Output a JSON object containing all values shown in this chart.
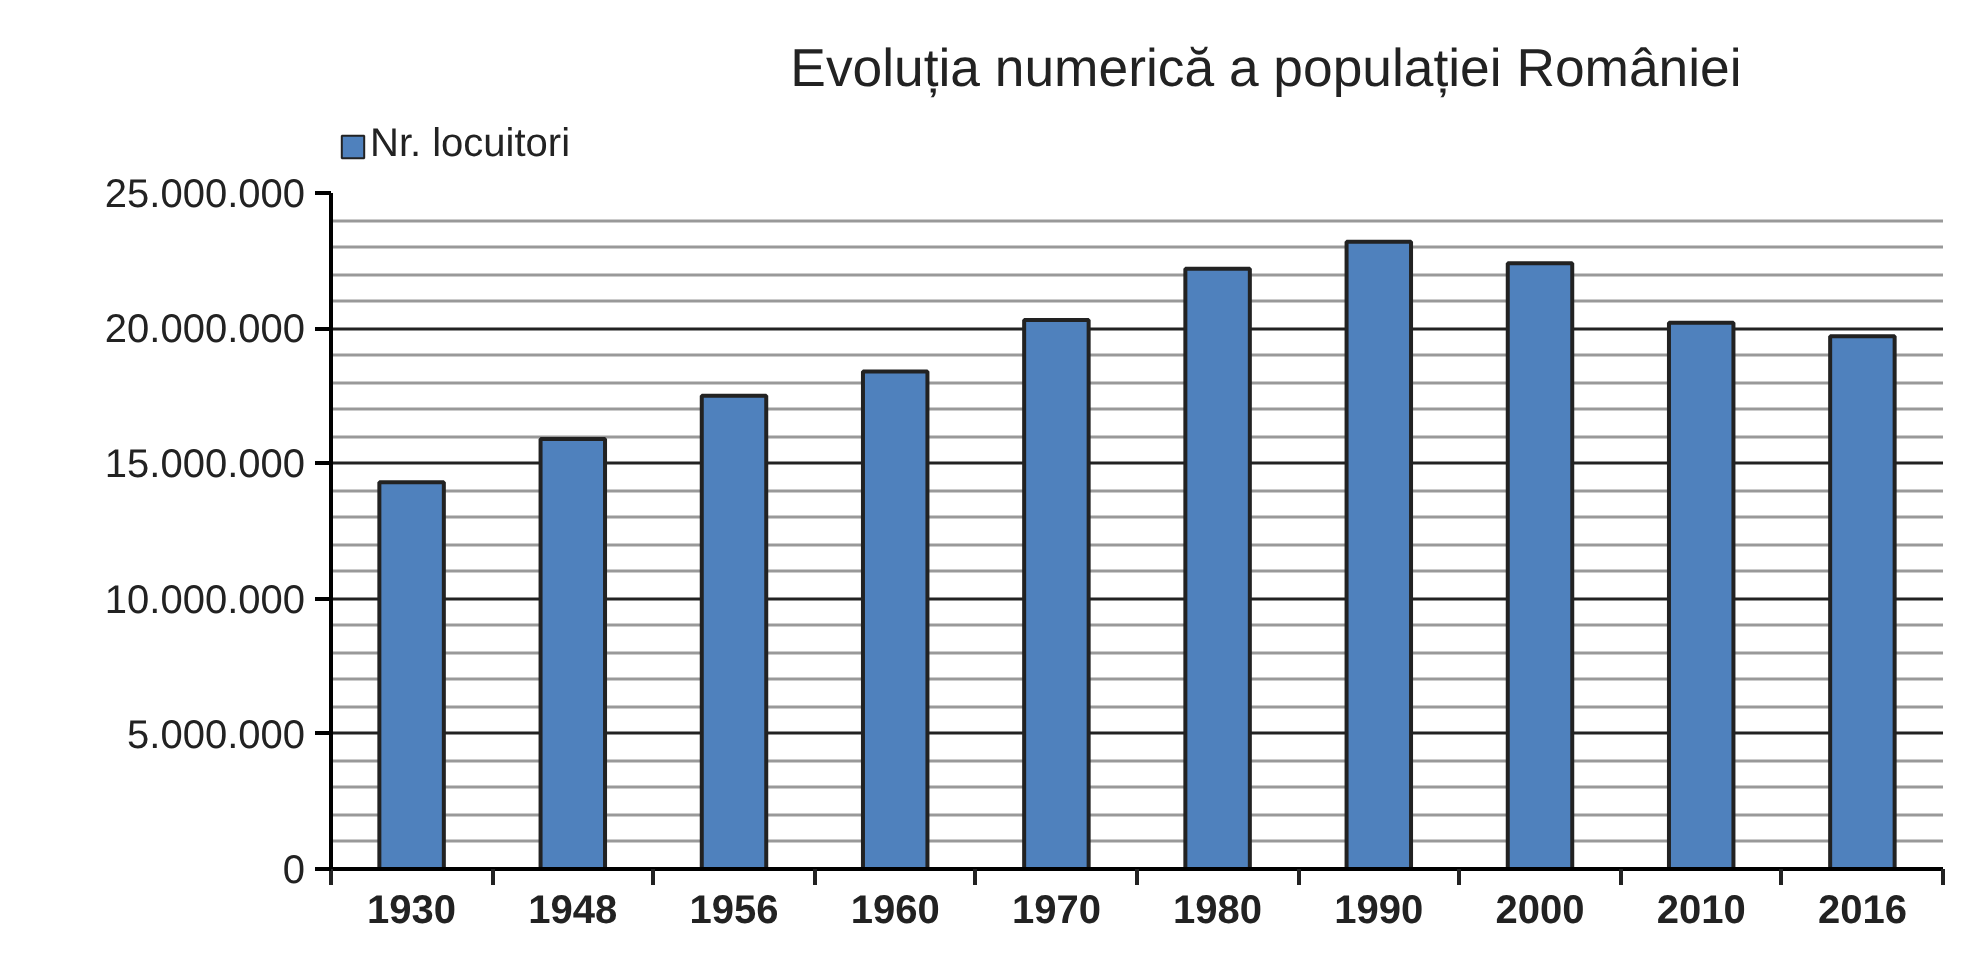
{
  "chart_data": {
    "type": "bar",
    "title": "Evoluția numerică a populației României",
    "categories": [
      "1930",
      "1948",
      "1956",
      "1960",
      "1970",
      "1980",
      "1990",
      "2000",
      "2010",
      "2016"
    ],
    "series": [
      {
        "name": "Nr. locuitori",
        "color": "#4f81bd",
        "values": [
          14300000,
          15900000,
          17500000,
          18400000,
          20300000,
          22200000,
          23200000,
          22400000,
          20200000,
          19700000
        ]
      }
    ],
    "ylim": [
      0,
      25000000
    ],
    "yticks": [
      0,
      {
        "value": 5000000,
        "label": "5.000.000"
      },
      {
        "value": 10000000,
        "label": "10.000.000"
      },
      {
        "value": 15000000,
        "label": "15.000.000"
      },
      {
        "value": 20000000,
        "label": "20.000.000"
      },
      {
        "value": 25000000,
        "label": "25.000.000"
      }
    ],
    "grid": "y",
    "legend": "top left"
  }
}
